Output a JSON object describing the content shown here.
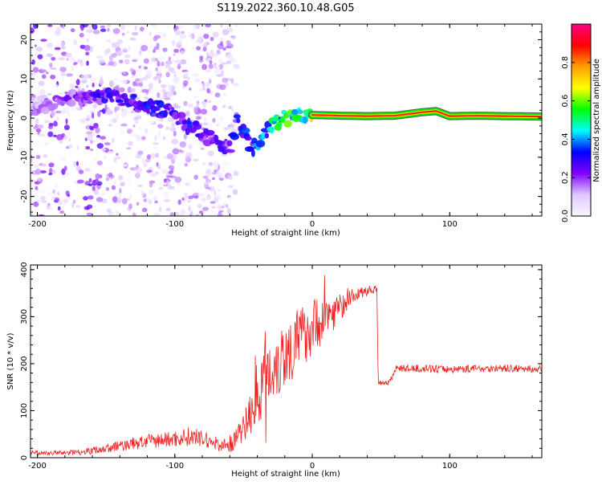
{
  "title": "S119.2022.360.10.48.G05",
  "chart_data": [
    {
      "type": "heatmap",
      "name": "spectrogram",
      "title": "S119.2022.360.10.48.G05",
      "xlabel": "Height of straight line (km)",
      "ylabel": "Frequency (Hz)",
      "xlim": [
        -205,
        167
      ],
      "ylim": [
        -25,
        24
      ],
      "xticks": [
        -200,
        -100,
        0,
        100
      ],
      "xtick_labels": [
        "-200",
        "-100",
        "0",
        "100"
      ],
      "yticks": [
        -20,
        -10,
        0,
        10,
        20
      ],
      "ytick_labels": [
        "-20",
        "-10",
        "0",
        "10",
        "20"
      ],
      "colorbar": {
        "label": "Normalized spectral amplitude",
        "range": [
          0,
          1
        ],
        "ticks": [
          0.0,
          0.2,
          0.4,
          0.6,
          0.8
        ],
        "tick_labels": [
          "0.0",
          "0.2",
          "0.4",
          "0.6",
          "0.8"
        ],
        "colors": [
          "#f8f8ff",
          "#e0c8ff",
          "#8000ff",
          "#0000ff",
          "#00ffff",
          "#00ff00",
          "#ffff00",
          "#ffa000",
          "#ff0000",
          "#ff0080"
        ]
      },
      "ridge": {
        "heights": [
          -200,
          -180,
          -160,
          -140,
          -120,
          -100,
          -90,
          -80,
          -70,
          -60,
          -55,
          -50,
          -45,
          -40,
          -30,
          -20,
          -10,
          0,
          20,
          40,
          60,
          80,
          90,
          100,
          120,
          140,
          167
        ],
        "frequency": [
          3,
          5,
          6,
          5,
          3,
          1,
          -2,
          -4,
          -6,
          -8,
          -1,
          -3,
          -7,
          -8,
          -2,
          0,
          0.5,
          0.8,
          0.6,
          0.5,
          0.6,
          1.5,
          1.8,
          0.5,
          0.6,
          0.5,
          0.4
        ],
        "amplitude": [
          0.15,
          0.2,
          0.25,
          0.3,
          0.3,
          0.3,
          0.3,
          0.25,
          0.25,
          0.25,
          0.3,
          0.3,
          0.35,
          0.35,
          0.45,
          0.5,
          0.55,
          0.6,
          0.9,
          0.9,
          0.9,
          0.9,
          0.8,
          0.9,
          0.7,
          0.6,
          0.6
        ]
      }
    },
    {
      "type": "line",
      "name": "snr",
      "xlabel": "Height of straight line (km)",
      "ylabel": "SNR (10 * v/v)",
      "xlim": [
        -205,
        167
      ],
      "ylim": [
        0,
        410
      ],
      "xticks": [
        -200,
        -100,
        0,
        100
      ],
      "xtick_labels": [
        "-200",
        "-100",
        "0",
        "100"
      ],
      "yticks": [
        0,
        100,
        200,
        300,
        400
      ],
      "ytick_labels": [
        "0",
        "100",
        "200",
        "300",
        "400"
      ],
      "color": "#ee2020",
      "series": [
        {
          "name": "SNR",
          "x": [
            -205,
            -180,
            -160,
            -140,
            -120,
            -100,
            -90,
            -80,
            -70,
            -60,
            -50,
            -40,
            -30,
            -20,
            -10,
            0,
            10,
            20,
            30,
            40,
            47,
            48,
            55,
            58,
            60,
            80,
            100,
            120,
            140,
            167
          ],
          "y": [
            10,
            10,
            15,
            25,
            35,
            40,
            45,
            40,
            30,
            25,
            60,
            140,
            190,
            220,
            250,
            280,
            300,
            320,
            345,
            355,
            360,
            160,
            160,
            170,
            190,
            190,
            188,
            190,
            190,
            188
          ],
          "noise_amplitude": [
            5,
            5,
            8,
            12,
            15,
            18,
            20,
            18,
            15,
            15,
            30,
            70,
            80,
            80,
            70,
            60,
            50,
            30,
            15,
            10,
            8,
            6,
            6,
            6,
            8,
            8,
            8,
            8,
            8,
            8
          ]
        }
      ]
    }
  ]
}
